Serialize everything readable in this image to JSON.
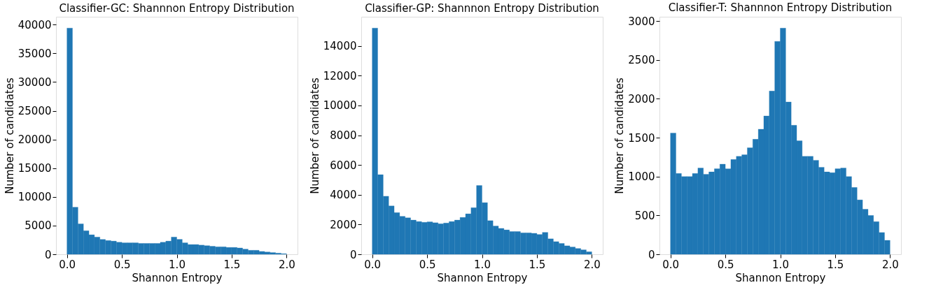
{
  "chart_data": [
    {
      "type": "histogram",
      "title": "Classifier-GC: Shannnon Entropy Distribution",
      "xlabel": "Shannon Entropy",
      "ylabel": "Number of candidates",
      "color": "#1f77b4",
      "grid": false,
      "bins": [
        0,
        0.05,
        0.1,
        0.15,
        0.2,
        0.25,
        0.3,
        0.35,
        0.4,
        0.45,
        0.5,
        0.55,
        0.6,
        0.65,
        0.7,
        0.75,
        0.8,
        0.85,
        0.9,
        0.95,
        1.0,
        1.05,
        1.1,
        1.15,
        1.2,
        1.25,
        1.3,
        1.35,
        1.4,
        1.45,
        1.5,
        1.55,
        1.6,
        1.65,
        1.7,
        1.75,
        1.8,
        1.85,
        1.9,
        1.95,
        2.0
      ],
      "values": [
        39400,
        8200,
        5300,
        4100,
        3400,
        3000,
        2600,
        2400,
        2300,
        2100,
        2000,
        2000,
        2000,
        1900,
        1900,
        1900,
        1900,
        2100,
        2300,
        3000,
        2600,
        2000,
        1700,
        1700,
        1600,
        1500,
        1400,
        1300,
        1300,
        1200,
        1200,
        1100,
        900,
        700,
        700,
        500,
        400,
        300,
        200,
        100
      ],
      "xlim": [
        -0.1,
        2.1
      ],
      "xticks": [
        {
          "value": 0,
          "label": "0.0"
        },
        {
          "value": 0.5,
          "label": "0.5"
        },
        {
          "value": 1,
          "label": "1.0"
        },
        {
          "value": 1.5,
          "label": "1.5"
        },
        {
          "value": 2,
          "label": "2.0"
        }
      ],
      "ylim": [
        0,
        41370
      ],
      "yticks": [
        0,
        5000,
        10000,
        15000,
        20000,
        25000,
        30000,
        35000,
        40000
      ]
    },
    {
      "type": "histogram",
      "title": "Classifier-GP: Shannnon Entropy Distribution",
      "xlabel": "Shannon Entropy",
      "ylabel": "Number of candidates",
      "color": "#1f77b4",
      "grid": false,
      "bins": [
        0,
        0.05,
        0.1,
        0.15,
        0.2,
        0.25,
        0.3,
        0.35,
        0.4,
        0.45,
        0.5,
        0.55,
        0.6,
        0.65,
        0.7,
        0.75,
        0.8,
        0.85,
        0.9,
        0.95,
        1.0,
        1.05,
        1.1,
        1.15,
        1.2,
        1.25,
        1.3,
        1.35,
        1.4,
        1.45,
        1.5,
        1.55,
        1.6,
        1.65,
        1.7,
        1.75,
        1.8,
        1.85,
        1.9,
        1.95,
        2.0
      ],
      "values": [
        15200,
        5350,
        3900,
        3250,
        2800,
        2550,
        2450,
        2300,
        2200,
        2150,
        2180,
        2120,
        2050,
        2100,
        2200,
        2300,
        2480,
        2720,
        3130,
        4620,
        3470,
        2260,
        1900,
        1740,
        1640,
        1530,
        1530,
        1440,
        1440,
        1410,
        1330,
        1470,
        1040,
        850,
        730,
        570,
        490,
        390,
        300,
        170
      ],
      "xlim": [
        -0.1,
        2.1
      ],
      "xticks": [
        {
          "value": 0,
          "label": "0.0"
        },
        {
          "value": 0.5,
          "label": "0.5"
        },
        {
          "value": 1,
          "label": "1.0"
        },
        {
          "value": 1.5,
          "label": "1.5"
        },
        {
          "value": 2,
          "label": "2.0"
        }
      ],
      "ylim": [
        0,
        15960
      ],
      "yticks": [
        0,
        2000,
        4000,
        6000,
        8000,
        10000,
        12000,
        14000
      ]
    },
    {
      "type": "histogram",
      "title": "Classifier-T: Shannnon Entropy Distribution",
      "xlabel": "Shannon Entropy",
      "ylabel": "Number of candidates",
      "color": "#1f77b4",
      "grid": false,
      "bins": [
        0,
        0.05,
        0.1,
        0.15,
        0.2,
        0.25,
        0.3,
        0.35,
        0.4,
        0.45,
        0.5,
        0.55,
        0.6,
        0.65,
        0.7,
        0.75,
        0.8,
        0.85,
        0.9,
        0.95,
        1.0,
        1.05,
        1.1,
        1.15,
        1.2,
        1.25,
        1.3,
        1.35,
        1.4,
        1.45,
        1.5,
        1.55,
        1.6,
        1.65,
        1.7,
        1.75,
        1.8,
        1.85,
        1.9,
        1.95,
        2.0
      ],
      "values": [
        1560,
        1040,
        1000,
        1000,
        1040,
        1110,
        1030,
        1060,
        1100,
        1160,
        1100,
        1220,
        1260,
        1280,
        1370,
        1480,
        1610,
        1780,
        2100,
        2740,
        2910,
        1960,
        1660,
        1460,
        1260,
        1260,
        1210,
        1120,
        1060,
        1050,
        1100,
        1110,
        1000,
        860,
        700,
        580,
        500,
        420,
        280,
        180
      ],
      "xlim": [
        -0.1,
        2.1
      ],
      "xticks": [
        {
          "value": 0,
          "label": "0.0"
        },
        {
          "value": 0.5,
          "label": "0.5"
        },
        {
          "value": 1,
          "label": "1.0"
        },
        {
          "value": 1.5,
          "label": "1.5"
        },
        {
          "value": 2,
          "label": "2.0"
        }
      ],
      "ylim": [
        0,
        3056
      ],
      "yticks": [
        0,
        500,
        1000,
        1500,
        2000,
        2500,
        3000
      ]
    }
  ]
}
